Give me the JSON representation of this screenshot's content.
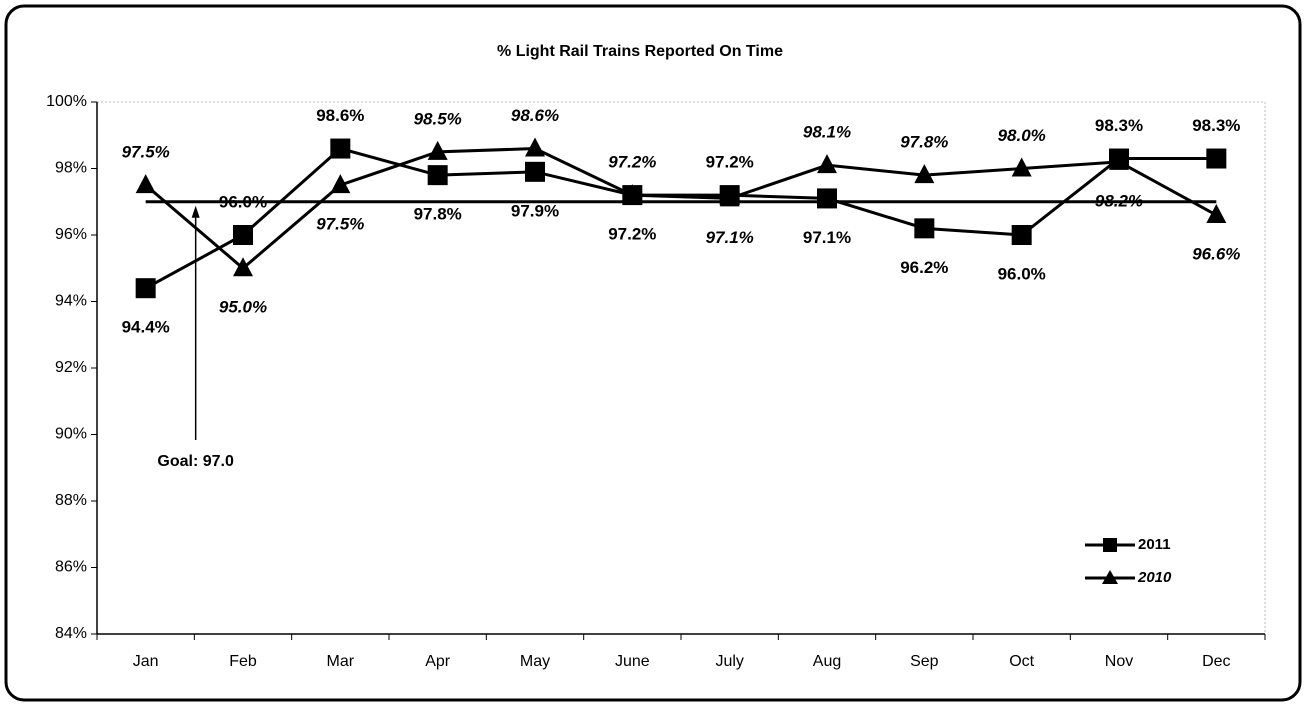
{
  "chart_data": {
    "type": "line",
    "title": "% Light Rail Trains Reported On Time",
    "categories": [
      "Jan",
      "Feb",
      "Mar",
      "Apr",
      "May",
      "June",
      "July",
      "Aug",
      "Sep",
      "Oct",
      "Nov",
      "Dec"
    ],
    "series": [
      {
        "name": "2011",
        "color": "#000000",
        "marker": "square",
        "values": [
          94.4,
          96.0,
          98.6,
          97.8,
          97.9,
          97.2,
          97.2,
          97.1,
          96.2,
          96.0,
          98.3,
          98.3
        ],
        "value_labels": [
          "94.4%",
          "96.0%",
          "98.6%",
          "97.8%",
          "97.9%",
          "97.2%",
          "97.2%",
          "97.1%",
          "96.2%",
          "96.0%",
          "98.3%",
          "98.3%"
        ]
      },
      {
        "name": "2010",
        "color": "#000000",
        "marker": "triangle",
        "values": [
          97.5,
          95.0,
          97.5,
          98.5,
          98.6,
          97.2,
          97.1,
          98.1,
          97.8,
          98.0,
          98.2,
          96.6
        ],
        "value_labels": [
          "97.5%",
          "95.0%",
          "97.5%",
          "98.5%",
          "98.6%",
          "97.2%",
          "97.1%",
          "98.1%",
          "97.8%",
          "98.0%",
          "98.2%",
          "96.6%"
        ]
      }
    ],
    "goal": 97.0,
    "goal_annotation": "Goal: 97.0",
    "ylim": [
      84,
      100
    ],
    "yticks": [
      {
        "value": 84,
        "label": "84%"
      },
      {
        "value": 86,
        "label": "86%"
      },
      {
        "value": 88,
        "label": "88%"
      },
      {
        "value": 90,
        "label": "90%"
      },
      {
        "value": 92,
        "label": "92%"
      },
      {
        "value": 94,
        "label": "94%"
      },
      {
        "value": 96,
        "label": "96%"
      },
      {
        "value": 98,
        "label": "98%"
      },
      {
        "value": 100,
        "label": "100%"
      }
    ],
    "legend": "bottom-right"
  }
}
